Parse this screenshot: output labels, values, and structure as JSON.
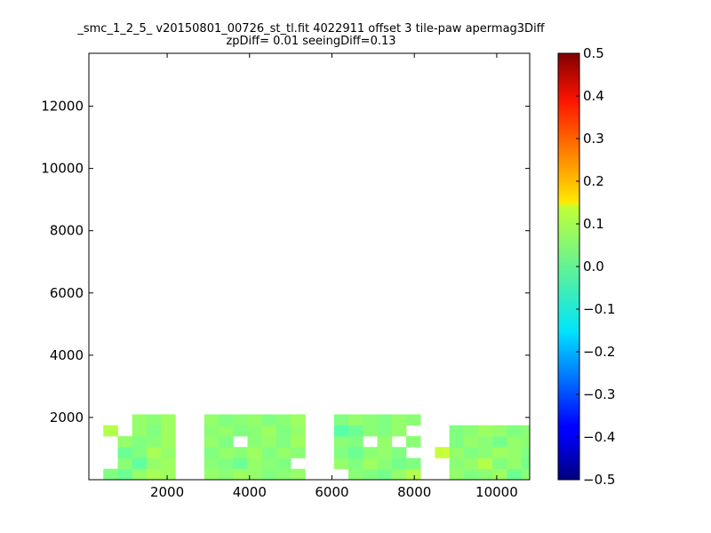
{
  "chart_data": {
    "type": "heatmap",
    "title": "_smc_1_2_5_ v20150801_00726_st_tl.fit 4022911 offset 3 tile-paw apermag3Diff",
    "subtitle": "zpDiff= 0.01 seeingDiff=0.13",
    "xlabel": "",
    "ylabel": "",
    "xlim": [
      100,
      10800
    ],
    "ylim": [
      0,
      13700
    ],
    "x_ticks": [
      2000,
      4000,
      6000,
      8000,
      10000
    ],
    "y_ticks": [
      2000,
      4000,
      6000,
      8000,
      10000,
      12000
    ],
    "x_tick_labels": [
      "2000",
      "4000",
      "6000",
      "8000",
      "10000"
    ],
    "y_tick_labels": [
      "2000",
      "4000",
      "6000",
      "8000",
      "10000",
      "12000"
    ],
    "grid": false,
    "cell_size": 350,
    "colorscale": "jet",
    "colorbar": {
      "vmin": -0.5,
      "vmax": 0.5,
      "ticks": [
        0.5,
        0.4,
        0.3,
        0.2,
        0.1,
        0.0,
        -0.1,
        -0.2,
        -0.3,
        -0.4,
        -0.5
      ],
      "tick_labels": [
        "0.5",
        "0.4",
        "0.3",
        "0.2",
        "0.1",
        "0.0",
        "−0.1",
        "−0.2",
        "−0.3",
        "−0.4",
        "−0.5"
      ]
    },
    "x_bins": [
      100,
      450,
      800,
      1150,
      1500,
      1850,
      2200,
      2550,
      2900,
      3250,
      3600,
      3950,
      4300,
      4650,
      5000,
      5350,
      5700,
      6050,
      6400,
      6750,
      7100,
      7450,
      7800,
      8150,
      8500,
      8850,
      9200,
      9550,
      9900,
      10250,
      10600
    ],
    "y_bins": [
      0,
      350,
      700,
      1050,
      1400,
      1750,
      2100,
      2450,
      2800,
      3150,
      3500,
      3850,
      4200,
      4550,
      4900,
      5250,
      5600,
      5950,
      6300,
      6650,
      7000,
      7350,
      7700,
      8050,
      8400,
      8750,
      9100,
      9450,
      9800,
      10150,
      10500,
      10850,
      11200,
      11550,
      11900,
      12250,
      12600,
      12950,
      13300,
      13650
    ],
    "cells": [
      [
        450,
        0,
        0.0
      ],
      [
        800,
        0,
        -0.02
      ],
      [
        1150,
        0,
        0.02
      ],
      [
        1500,
        0,
        0.04
      ],
      [
        1850,
        0,
        0.03
      ],
      [
        2900,
        0,
        0.02
      ],
      [
        3250,
        0,
        0.01
      ],
      [
        3600,
        0,
        0.03
      ],
      [
        3950,
        0,
        0.02
      ],
      [
        4300,
        0,
        0.0
      ],
      [
        4650,
        0,
        0.01
      ],
      [
        5000,
        0,
        0.02
      ],
      [
        6400,
        0,
        0.01
      ],
      [
        6750,
        0,
        0.0
      ],
      [
        7100,
        0,
        -0.01
      ],
      [
        7450,
        0,
        0.02
      ],
      [
        7800,
        0,
        0.05
      ],
      [
        8850,
        0,
        0.02
      ],
      [
        9200,
        0,
        0.0
      ],
      [
        9550,
        0,
        0.01
      ],
      [
        9900,
        0,
        0.03
      ],
      [
        10250,
        0,
        -0.02
      ],
      [
        10600,
        0,
        0.01
      ],
      [
        800,
        350,
        0.01
      ],
      [
        1150,
        350,
        -0.03
      ],
      [
        1500,
        350,
        0.02
      ],
      [
        1850,
        350,
        0.03
      ],
      [
        2900,
        350,
        0.01
      ],
      [
        3250,
        350,
        0.0
      ],
      [
        3600,
        350,
        -0.02
      ],
      [
        3950,
        350,
        0.02
      ],
      [
        4300,
        350,
        0.01
      ],
      [
        4650,
        350,
        0.0
      ],
      [
        6050,
        350,
        0.02
      ],
      [
        6400,
        350,
        0.0
      ],
      [
        6750,
        350,
        0.03
      ],
      [
        7100,
        350,
        0.01
      ],
      [
        7450,
        350,
        -0.01
      ],
      [
        7800,
        350,
        0.0
      ],
      [
        8850,
        350,
        0.01
      ],
      [
        9200,
        350,
        0.02
      ],
      [
        9550,
        350,
        0.05
      ],
      [
        9900,
        350,
        0.0
      ],
      [
        10250,
        350,
        0.02
      ],
      [
        10600,
        350,
        -0.01
      ],
      [
        800,
        700,
        -0.02
      ],
      [
        1150,
        700,
        0.0
      ],
      [
        1500,
        700,
        0.04
      ],
      [
        1850,
        700,
        0.02
      ],
      [
        2900,
        700,
        0.0
      ],
      [
        3250,
        700,
        0.02
      ],
      [
        3600,
        700,
        0.01
      ],
      [
        3950,
        700,
        0.03
      ],
      [
        4300,
        700,
        0.0
      ],
      [
        4650,
        700,
        0.02
      ],
      [
        5000,
        700,
        0.01
      ],
      [
        6050,
        700,
        0.0
      ],
      [
        6400,
        700,
        -0.02
      ],
      [
        6750,
        700,
        0.01
      ],
      [
        7100,
        700,
        0.02
      ],
      [
        7450,
        700,
        0.0
      ],
      [
        8500,
        700,
        0.07
      ],
      [
        8850,
        700,
        0.02
      ],
      [
        9200,
        700,
        0.0
      ],
      [
        9550,
        700,
        0.01
      ],
      [
        9900,
        700,
        0.03
      ],
      [
        10250,
        700,
        0.02
      ],
      [
        10600,
        700,
        0.0
      ],
      [
        800,
        1050,
        0.02
      ],
      [
        1150,
        1050,
        0.0
      ],
      [
        1500,
        1050,
        0.01
      ],
      [
        1850,
        1050,
        0.03
      ],
      [
        2900,
        1050,
        0.02
      ],
      [
        3250,
        1050,
        0.0
      ],
      [
        3950,
        1050,
        0.01
      ],
      [
        4300,
        1050,
        0.02
      ],
      [
        4650,
        1050,
        0.0
      ],
      [
        5000,
        1050,
        0.03
      ],
      [
        6050,
        1050,
        0.01
      ],
      [
        6400,
        1050,
        0.0
      ],
      [
        7100,
        1050,
        0.02
      ],
      [
        7800,
        1050,
        0.01
      ],
      [
        8850,
        1050,
        0.0
      ],
      [
        9200,
        1050,
        0.02
      ],
      [
        9550,
        1050,
        0.01
      ],
      [
        9900,
        1050,
        -0.01
      ],
      [
        10250,
        1050,
        0.02
      ],
      [
        10600,
        1050,
        0.01
      ],
      [
        450,
        1400,
        0.05
      ],
      [
        1150,
        1400,
        0.02
      ],
      [
        1500,
        1400,
        0.0
      ],
      [
        1850,
        1400,
        0.03
      ],
      [
        2900,
        1400,
        0.01
      ],
      [
        3250,
        1400,
        0.02
      ],
      [
        3600,
        1400,
        0.0
      ],
      [
        3950,
        1400,
        0.01
      ],
      [
        4300,
        1400,
        0.03
      ],
      [
        4650,
        1400,
        0.0
      ],
      [
        5000,
        1400,
        0.02
      ],
      [
        6050,
        1400,
        -0.04
      ],
      [
        6400,
        1400,
        -0.02
      ],
      [
        6750,
        1400,
        0.01
      ],
      [
        7100,
        1400,
        0.0
      ],
      [
        7450,
        1400,
        0.02
      ],
      [
        8850,
        1400,
        0.0
      ],
      [
        9200,
        1400,
        0.01
      ],
      [
        9550,
        1400,
        0.03
      ],
      [
        9900,
        1400,
        0.02
      ],
      [
        10250,
        1400,
        0.0
      ],
      [
        10600,
        1400,
        0.01
      ],
      [
        1150,
        1750,
        0.02
      ],
      [
        1500,
        1750,
        0.01
      ],
      [
        1850,
        1750,
        0.03
      ],
      [
        2900,
        1750,
        0.02
      ],
      [
        3250,
        1750,
        0.0
      ],
      [
        3600,
        1750,
        0.01
      ],
      [
        3950,
        1750,
        0.02
      ],
      [
        4300,
        1750,
        0.0
      ],
      [
        4650,
        1750,
        0.01
      ],
      [
        5000,
        1750,
        0.03
      ],
      [
        6050,
        1750,
        0.0
      ],
      [
        6400,
        1750,
        0.02
      ],
      [
        6750,
        1750,
        0.01
      ],
      [
        7100,
        1750,
        0.0
      ],
      [
        7450,
        1750,
        0.02
      ],
      [
        7800,
        1750,
        0.01
      ]
    ]
  }
}
